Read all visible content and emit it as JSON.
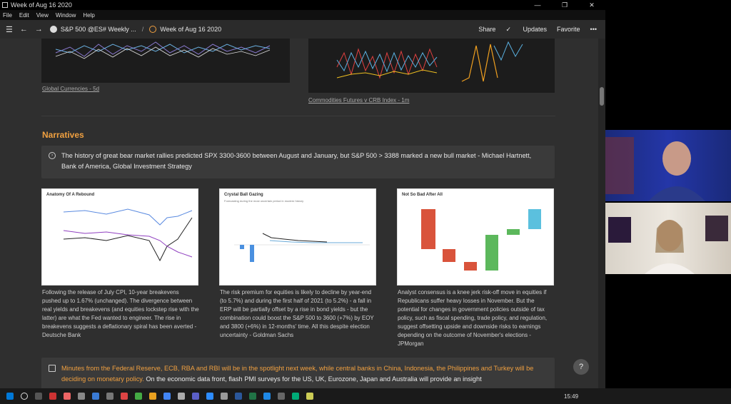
{
  "window": {
    "title": "Week of Aug 16 2020",
    "controls": [
      "—",
      "❐",
      "✕"
    ]
  },
  "menu": [
    "File",
    "Edit",
    "View",
    "Window",
    "Help"
  ],
  "nav": {
    "menu_icon": "hamburger-icon",
    "breadcrumb_1": "S&P 500 @ES# Weekly ...",
    "separator": "/",
    "breadcrumb_2": "Week of Aug 16 2020",
    "share": "Share",
    "updates": "Updates",
    "favorite": "Favorite",
    "more": "•••"
  },
  "top_charts": [
    {
      "caption": "Global Currencies",
      "suffix": " - 5d"
    },
    {
      "caption": "Commodities Futures v CRB Index",
      "suffix": " - 1m"
    }
  ],
  "section": {
    "title": "Narratives"
  },
  "quote": {
    "text": "The history of great bear market rallies predicted SPX 3300-3600 between August and January, but S&P 500 > 3388 marked a new bull market - Michael Hartnett, Bank of America, Global Investment Strategy"
  },
  "cards": [
    {
      "chart_title": "Anatomy Of A Rebound",
      "text": "Following the release of July CPI, 10-year breakevens pushed up to 1.67% (unchanged).  The divergence between real yields and breakevens (and equities lockstep rise with the latter) are what the Fed wanted to engineer.  The rise in breakevens suggests a deflationary spiral has been averted - Deutsche Bank"
    },
    {
      "chart_title": "Crystal Ball Gazing",
      "chart_subtitle": "Forecasting during the most uncertain period in modern history",
      "text": "The risk premium for equities is likely to decline by year-end (to 5.7%) and during the first half of 2021 (to 5.2%) - a fall in ERP will be partially offset by a rise in bond yields - but the combination could boost the S&P 500 to 3600 (+7%) by EOY and 3800 (+6%) in 12-months' time.  All this despite election uncertainty - Goldman Sachs"
    },
    {
      "chart_title": "Not So Bad After All",
      "text": "Analyst consensus is a knee jerk risk-off move in equities if Republicans suffer heavy losses in November.  But the potential for changes in government policies outside of tax policy, such as fiscal spending, trade policy, and regulation, suggest offsetting upside and downside risks to earnings depending on the outcome of November's elections - JPMorgan"
    }
  ],
  "bottom": {
    "highlight": "Minutes from the Federal Reserve, ECB, RBA and RBI will be in the spotlight next week, while central banks in China, Indonesia, the Philippines and Turkey will be deciding on monetary policy.",
    "text": "  On the economic data front, flash PMI surveys for the US, UK, Eurozone, Japan and Australia will provide an insight"
  },
  "help": "?",
  "taskbar": {
    "time": "15:49"
  },
  "colors": {
    "accent": "#f0a040",
    "background": "#2f2f2f"
  }
}
